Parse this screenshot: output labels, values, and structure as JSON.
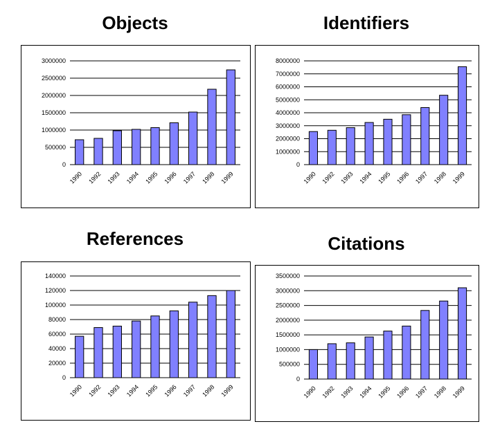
{
  "colors": {
    "bar_fill": "#8080ff",
    "bar_stroke": "#000000",
    "grid": "#000000"
  },
  "chart_data": [
    {
      "type": "bar",
      "title": "Objects",
      "categories": [
        "1990",
        "1992",
        "1993",
        "1994",
        "1995",
        "1996",
        "1997",
        "1998",
        "1999"
      ],
      "values": [
        720000,
        760000,
        980000,
        1020000,
        1070000,
        1210000,
        1520000,
        2180000,
        2740000
      ],
      "ylim": [
        0,
        3000000
      ],
      "yticks": [
        0,
        500000,
        1000000,
        1500000,
        2000000,
        2500000,
        3000000
      ],
      "grid": true,
      "xlabel": "",
      "ylabel": ""
    },
    {
      "type": "bar",
      "title": "Identifiers",
      "categories": [
        "1990",
        "1992",
        "1993",
        "1994",
        "1995",
        "1996",
        "1997",
        "1998",
        "1999"
      ],
      "values": [
        2550000,
        2650000,
        2850000,
        3250000,
        3500000,
        3850000,
        4400000,
        5350000,
        7550000
      ],
      "ylim": [
        0,
        8000000
      ],
      "yticks": [
        0,
        1000000,
        2000000,
        3000000,
        4000000,
        5000000,
        6000000,
        7000000,
        8000000
      ],
      "grid": true,
      "xlabel": "",
      "ylabel": ""
    },
    {
      "type": "bar",
      "title": "References",
      "categories": [
        "1990",
        "1992",
        "1993",
        "1994",
        "1995",
        "1996",
        "1997",
        "1998",
        "1999"
      ],
      "values": [
        57000,
        69000,
        71000,
        78000,
        85000,
        92000,
        104000,
        113000,
        120000
      ],
      "ylim": [
        0,
        140000
      ],
      "yticks": [
        0,
        20000,
        40000,
        60000,
        80000,
        100000,
        120000,
        140000
      ],
      "grid": true,
      "xlabel": "",
      "ylabel": ""
    },
    {
      "type": "bar",
      "title": "Citations",
      "categories": [
        "1990",
        "1992",
        "1993",
        "1994",
        "1995",
        "1996",
        "1997",
        "1998",
        "1999"
      ],
      "values": [
        1000000,
        1200000,
        1230000,
        1430000,
        1630000,
        1800000,
        2330000,
        2650000,
        3100000
      ],
      "ylim": [
        0,
        3500000
      ],
      "yticks": [
        0,
        500000,
        1000000,
        1500000,
        2000000,
        2500000,
        3000000,
        3500000
      ],
      "grid": true,
      "xlabel": "",
      "ylabel": ""
    }
  ]
}
